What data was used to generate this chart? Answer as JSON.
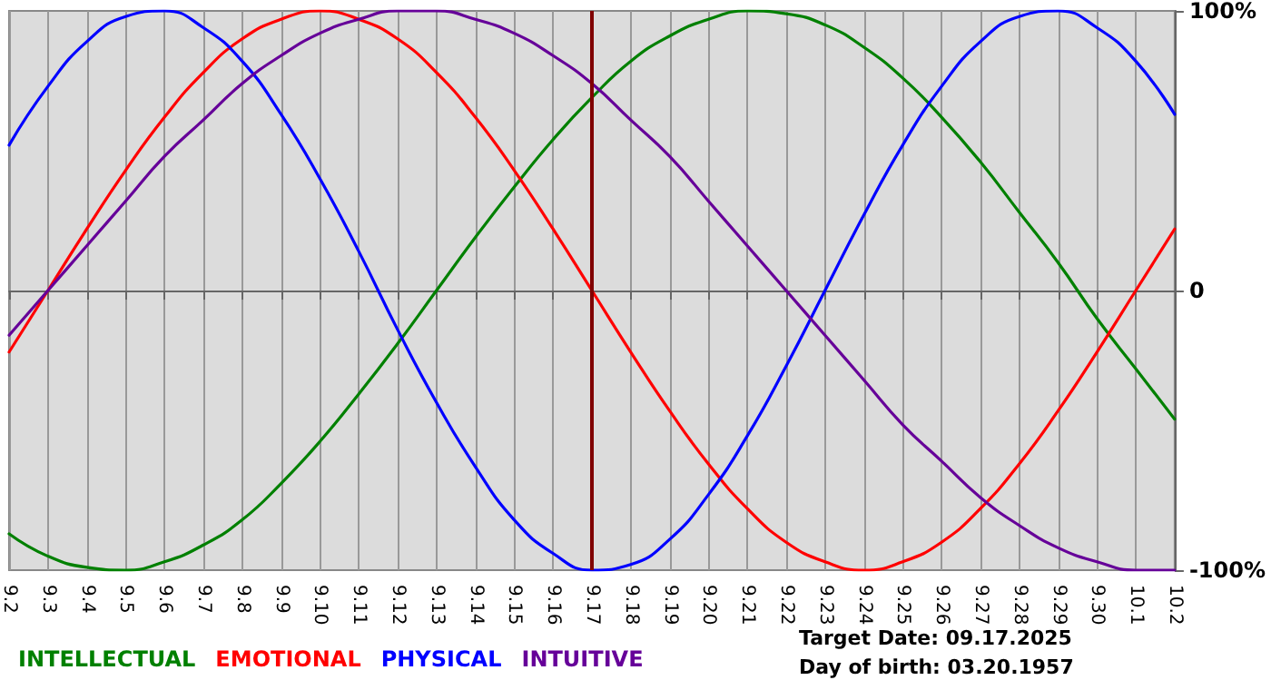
{
  "chart_data": {
    "type": "line",
    "categories": [
      "9.2",
      "9.3",
      "9.4",
      "9.5",
      "9.6",
      "9.7",
      "9.8",
      "9.9",
      "9.10",
      "9.11",
      "9.12",
      "9.13",
      "9.14",
      "9.15",
      "9.16",
      "9.17",
      "9.18",
      "9.19",
      "9.20",
      "9.21",
      "9.22",
      "9.23",
      "9.24",
      "9.25",
      "9.26",
      "9.27",
      "9.28",
      "9.29",
      "9.30",
      "10.1",
      "10.2"
    ],
    "series": [
      {
        "name": "INTELLECTUAL",
        "color": "#008000",
        "values": [
          -87,
          -95,
          -99,
          -100,
          -97,
          -91,
          -82,
          -69,
          -54,
          -37,
          -19,
          0,
          19,
          37,
          54,
          69,
          82,
          91,
          97,
          100,
          99,
          95,
          87,
          76,
          62,
          46,
          28,
          10,
          -10,
          -28,
          -46
        ]
      },
      {
        "name": "EMOTIONAL",
        "color": "#ff0000",
        "values": [
          -22,
          0,
          22,
          43,
          62,
          78,
          90,
          97,
          100,
          97,
          90,
          78,
          62,
          43,
          22,
          0,
          -22,
          -43,
          -62,
          -78,
          -90,
          -97,
          -100,
          -97,
          -90,
          -78,
          -62,
          -43,
          -22,
          0,
          22
        ]
      },
      {
        "name": "PHYSICAL",
        "color": "#0000ff",
        "values": [
          52,
          73,
          89,
          98,
          100,
          94,
          82,
          63,
          40,
          14,
          -14,
          -40,
          -63,
          -82,
          -94,
          -100,
          -98,
          -89,
          -73,
          -52,
          -27,
          0,
          27,
          52,
          73,
          89,
          98,
          100,
          94,
          82,
          63
        ]
      },
      {
        "name": "INTUITIVE",
        "color": "#660099",
        "values": [
          -16,
          0,
          16,
          32,
          48,
          61,
          74,
          84,
          92,
          97,
          100,
          100,
          97,
          92,
          84,
          74,
          61,
          48,
          32,
          16,
          0,
          -16,
          -32,
          -48,
          -61,
          -74,
          -84,
          -92,
          -97,
          -100,
          -100
        ]
      }
    ],
    "ylim": [
      -100,
      100
    ],
    "yticks": [
      {
        "value": -100,
        "label": "-100%"
      },
      {
        "value": 0,
        "label": "0"
      },
      {
        "value": 100,
        "label": "100%"
      }
    ],
    "ref_lines": [
      {
        "axis": "x",
        "value": "9.17",
        "color": "#800000"
      }
    ],
    "annotations": [
      "Target Date: 09.17.2025",
      "Day of birth: 03.20.1957"
    ],
    "grid": "x",
    "legend": "bottom left",
    "marker": "none",
    "line_style": "solid"
  }
}
